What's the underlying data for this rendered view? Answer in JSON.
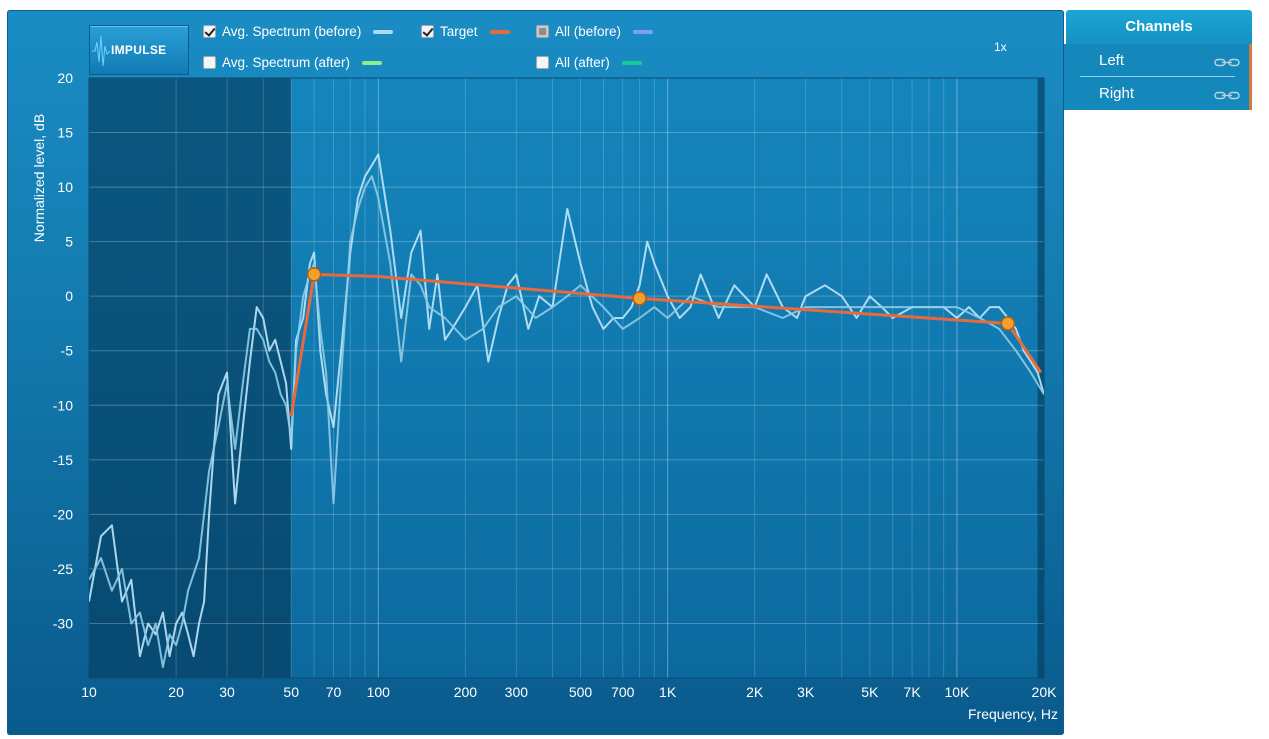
{
  "toolbar": {
    "impulse_label": "IMPULSE",
    "zoom": "1x"
  },
  "legend": {
    "avg_before": {
      "label": "Avg. Spectrum (before)",
      "checked": true,
      "color": "#a8dcf5"
    },
    "target": {
      "label": "Target",
      "checked": true,
      "color": "#e8693a"
    },
    "all_before": {
      "label": "All (before)",
      "checked": "partial",
      "color": "#7e9cff"
    },
    "avg_after": {
      "label": "Avg. Spectrum (after)",
      "checked": false,
      "color": "#8cf08a"
    },
    "all_after": {
      "label": "All (after)",
      "checked": false,
      "color": "#19c896"
    }
  },
  "channels": {
    "header": "Channels",
    "items": [
      {
        "label": "Left",
        "icon": "link-icon"
      },
      {
        "label": "Right",
        "icon": "link-icon"
      }
    ]
  },
  "chart_data": {
    "type": "line",
    "xlabel": "Frequency, Hz",
    "ylabel": "Normalized level, dB",
    "xscale": "log",
    "xlim": [
      10,
      20000
    ],
    "ylim": [
      -35,
      20
    ],
    "x_ticks": [
      {
        "value": 10,
        "label": "10"
      },
      {
        "value": 20,
        "label": "20"
      },
      {
        "value": 30,
        "label": "30"
      },
      {
        "value": 50,
        "label": "50"
      },
      {
        "value": 70,
        "label": "70"
      },
      {
        "value": 100,
        "label": "100"
      },
      {
        "value": 200,
        "label": "200"
      },
      {
        "value": 300,
        "label": "300"
      },
      {
        "value": 500,
        "label": "500"
      },
      {
        "value": 700,
        "label": "700"
      },
      {
        "value": 1000,
        "label": "1K"
      },
      {
        "value": 2000,
        "label": "2K"
      },
      {
        "value": 3000,
        "label": "3K"
      },
      {
        "value": 5000,
        "label": "5K"
      },
      {
        "value": 7000,
        "label": "7K"
      },
      {
        "value": 10000,
        "label": "10K"
      },
      {
        "value": 20000,
        "label": "20K"
      }
    ],
    "y_ticks": [
      {
        "value": 20,
        "label": "20"
      },
      {
        "value": 15,
        "label": "15"
      },
      {
        "value": 10,
        "label": "10"
      },
      {
        "value": 5,
        "label": "5"
      },
      {
        "value": 0,
        "label": "0"
      },
      {
        "value": -5,
        "label": "-5"
      },
      {
        "value": -10,
        "label": "-10"
      },
      {
        "value": -15,
        "label": "-15"
      },
      {
        "value": -20,
        "label": "-20"
      },
      {
        "value": -25,
        "label": "-25"
      },
      {
        "value": -30,
        "label": "-30"
      }
    ],
    "grid": true,
    "excluded_regions": [
      [
        10,
        50
      ],
      [
        19000,
        20000
      ]
    ],
    "series": [
      {
        "color": "#bfe6fa",
        "x": [
          10,
          11,
          12,
          13,
          14,
          15,
          16,
          17,
          18,
          19,
          20,
          21,
          22,
          23,
          24,
          25,
          26,
          27,
          28,
          30,
          32,
          34,
          36,
          38,
          40,
          42,
          44,
          46,
          48,
          50,
          52,
          55,
          58,
          60,
          63,
          66,
          70,
          75,
          80,
          85,
          90,
          95,
          100,
          110,
          120,
          130,
          140,
          150,
          160,
          170,
          180,
          200,
          220,
          240,
          260,
          280,
          300,
          330,
          360,
          400,
          450,
          500,
          550,
          600,
          650,
          700,
          750,
          800,
          850,
          900,
          1000,
          1100,
          1200,
          1300,
          1500,
          1700,
          2000,
          2200,
          2500,
          2800,
          3000,
          3500,
          4000,
          4500,
          5000,
          5500,
          6000,
          7000,
          8000,
          9000,
          10000,
          11000,
          12000,
          13000,
          14000,
          15000,
          16000,
          17000,
          18000,
          19000,
          20000
        ],
        "y": [
          -28,
          -22,
          -21,
          -28,
          -26,
          -33,
          -30,
          -31,
          -29,
          -33,
          -30,
          -29,
          -31,
          -33,
          -30,
          -28,
          -20,
          -14,
          -9,
          -7,
          -19,
          -12,
          -6,
          -1,
          -2,
          -5,
          -4,
          -6,
          -8,
          -14,
          -4,
          -2,
          3,
          4,
          -5,
          -9,
          -12,
          -4,
          4,
          9,
          11,
          12,
          13,
          6,
          -2,
          4,
          6,
          -3,
          2,
          -4,
          -3,
          -1,
          1,
          -6,
          -2,
          1,
          2,
          -3,
          0,
          -1,
          8,
          3,
          -1,
          -3,
          -2,
          -2,
          -1,
          1,
          5,
          3,
          0,
          -2,
          -1,
          2,
          -2,
          1,
          -1,
          2,
          -1,
          -2,
          0,
          1,
          0,
          -2,
          0,
          -1,
          -2,
          -1,
          -1,
          -1,
          -2,
          -1,
          -2,
          -1,
          -1,
          -2,
          -3,
          -5,
          -6,
          -7,
          -9
        ]
      },
      {
        "color": "#8fcbe6",
        "x": [
          10,
          11,
          12,
          13,
          14,
          15,
          16,
          17,
          18,
          19,
          20,
          21,
          22,
          24,
          26,
          28,
          30,
          32,
          34,
          36,
          38,
          40,
          42,
          44,
          46,
          48,
          50,
          52,
          55,
          58,
          60,
          63,
          66,
          70,
          75,
          80,
          85,
          90,
          95,
          100,
          110,
          120,
          130,
          140,
          150,
          170,
          200,
          230,
          260,
          300,
          350,
          400,
          450,
          500,
          600,
          700,
          800,
          900,
          1000,
          1200,
          1500,
          1800,
          2000,
          2500,
          3000,
          4000,
          5000,
          6000,
          7000,
          8000,
          10000,
          12000,
          14000,
          16000,
          18000,
          20000
        ],
        "y": [
          -26,
          -24,
          -27,
          -25,
          -30,
          -29,
          -32,
          -30,
          -34,
          -31,
          -32,
          -30,
          -27,
          -24,
          -16,
          -12,
          -8,
          -14,
          -8,
          -3,
          -3,
          -4,
          -6,
          -7,
          -9,
          -10,
          -13,
          -5,
          0,
          2,
          3,
          -3,
          -7,
          -19,
          -6,
          5,
          8,
          10,
          11,
          9,
          3,
          -6,
          2,
          1,
          -1,
          -2,
          -4,
          -3,
          -1,
          0,
          -2,
          -1,
          0,
          1,
          -1,
          -3,
          -2,
          -1,
          -2,
          0,
          -1,
          -1,
          -1,
          -2,
          -1,
          -1,
          -1,
          -1,
          -1,
          -1,
          -1,
          -2,
          -3,
          -5,
          -7,
          -9
        ]
      },
      {
        "name": "Target",
        "color": "#e8693a",
        "x": [
          50,
          60,
          100,
          800,
          15000,
          19500
        ],
        "y": [
          -11,
          2,
          1.8,
          -0.2,
          -2.5,
          -7
        ]
      }
    ],
    "target_points": [
      {
        "x": 60,
        "y": 2
      },
      {
        "x": 800,
        "y": -0.2
      },
      {
        "x": 15000,
        "y": -2.5
      }
    ]
  }
}
